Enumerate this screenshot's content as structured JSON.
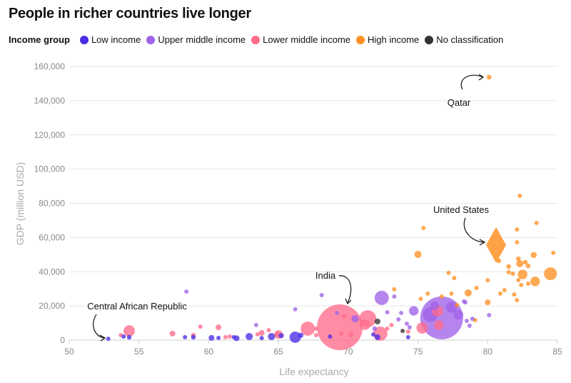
{
  "chart_data": {
    "type": "scatter",
    "title": "People in richer countries live longer",
    "xlabel": "Life expectancy",
    "ylabel": "GDP (million USD)",
    "xlim": [
      50,
      85
    ],
    "ylim": [
      0,
      160000
    ],
    "x_ticks": [
      "50",
      "55",
      "60",
      "65",
      "70",
      "75",
      "80",
      "85"
    ],
    "y_ticks": [
      "0",
      "20,000",
      "40,000",
      "60,000",
      "80,000",
      "100,000",
      "120,000",
      "140,000",
      "160,000"
    ],
    "grid": "horizontal",
    "legend": {
      "title": "Income group",
      "placement": "top-left",
      "entries": [
        {
          "label": "Low income",
          "color": "#4b2be6"
        },
        {
          "label": "Upper middle income",
          "color": "#a063e8"
        },
        {
          "label": "Lower middle income",
          "color": "#ff6b8a"
        },
        {
          "label": "High income",
          "color": "#ff9124"
        },
        {
          "label": "No classification",
          "color": "#333333"
        }
      ]
    },
    "point_fields": [
      "life_expectancy",
      "gdp",
      "relative_size",
      "income_group_index"
    ],
    "points": [
      [
        80.1,
        153700,
        1.2,
        3
      ],
      [
        82.3,
        84400,
        1,
        3
      ],
      [
        75.4,
        65600,
        1,
        3
      ],
      [
        83.5,
        68500,
        1,
        3
      ],
      [
        82.1,
        64700,
        1,
        3
      ],
      [
        82.1,
        57200,
        1,
        3
      ],
      [
        75.0,
        50100,
        2.8,
        3
      ],
      [
        84.7,
        51000,
        1,
        3
      ],
      [
        83.3,
        49700,
        2,
        3
      ],
      [
        82.2,
        47600,
        1.2,
        3
      ],
      [
        82.3,
        44700,
        2.8,
        3
      ],
      [
        82.7,
        45500,
        1.2,
        3
      ],
      [
        82.9,
        43400,
        1.2,
        3
      ],
      [
        81.5,
        43000,
        1.2,
        3
      ],
      [
        80.8,
        46400,
        1.2,
        3
      ],
      [
        81.5,
        39700,
        1,
        3
      ],
      [
        81.8,
        38800,
        1,
        3
      ],
      [
        82.5,
        38400,
        5,
        3
      ],
      [
        84.5,
        38800,
        9,
        3
      ],
      [
        82.2,
        35100,
        1,
        3
      ],
      [
        83.4,
        34300,
        5,
        3
      ],
      [
        82.9,
        33000,
        1,
        3
      ],
      [
        82.4,
        32200,
        1,
        3
      ],
      [
        77.2,
        39300,
        1,
        3
      ],
      [
        77.6,
        36300,
        1,
        3
      ],
      [
        80.0,
        35000,
        1,
        3
      ],
      [
        79.2,
        30500,
        1,
        3
      ],
      [
        81.2,
        29200,
        1,
        3
      ],
      [
        80.9,
        27200,
        1,
        3
      ],
      [
        81.9,
        26700,
        1,
        3
      ],
      [
        82.1,
        23400,
        1,
        3
      ],
      [
        80.0,
        22100,
        1.8,
        3
      ],
      [
        78.6,
        27600,
        2.8,
        3
      ],
      [
        77.4,
        27200,
        1,
        3
      ],
      [
        76.7,
        25500,
        1,
        3
      ],
      [
        75.7,
        27200,
        1,
        3
      ],
      [
        75.2,
        24200,
        1,
        3
      ],
      [
        77.8,
        20500,
        1,
        3
      ],
      [
        73.3,
        29700,
        1,
        3
      ],
      [
        79.1,
        11700,
        1,
        3
      ],
      [
        76.7,
        13000,
        100,
        1
      ],
      [
        72.4,
        24700,
        11,
        1
      ],
      [
        78.3,
        22600,
        1,
        1
      ],
      [
        68.1,
        26300,
        1,
        1
      ],
      [
        66.2,
        18000,
        1,
        1
      ],
      [
        73.3,
        25500,
        1,
        1
      ],
      [
        72.8,
        16300,
        1,
        1
      ],
      [
        73.8,
        15900,
        1,
        1
      ],
      [
        73.6,
        12100,
        1,
        1
      ],
      [
        74.2,
        9600,
        1,
        1
      ],
      [
        74.4,
        7500,
        1,
        1
      ],
      [
        74.7,
        17100,
        5,
        1
      ],
      [
        77.4,
        19200,
        7,
        1
      ],
      [
        78.4,
        22100,
        1,
        1
      ],
      [
        78.5,
        11300,
        1,
        1
      ],
      [
        78.9,
        12500,
        1,
        1
      ],
      [
        78.7,
        8400,
        1,
        1
      ],
      [
        80.1,
        14600,
        1,
        1
      ],
      [
        71.9,
        6700,
        1.2,
        1
      ],
      [
        69.2,
        15900,
        1,
        1
      ],
      [
        58.4,
        28400,
        1,
        1
      ],
      [
        63.4,
        8800,
        1,
        1
      ],
      [
        70.5,
        12500,
        3,
        1
      ],
      [
        75.9,
        15000,
        12,
        1
      ],
      [
        76.2,
        20000,
        4,
        1
      ],
      [
        77.9,
        14800,
        5,
        1
      ],
      [
        69.4,
        7500,
        114,
        2
      ],
      [
        71.4,
        12500,
        16,
        2
      ],
      [
        72.3,
        3800,
        11,
        2
      ],
      [
        67.1,
        6700,
        11,
        2
      ],
      [
        65.0,
        3300,
        4,
        2
      ],
      [
        75.3,
        7100,
        7,
        2
      ],
      [
        74.3,
        5000,
        1,
        2
      ],
      [
        73.1,
        8800,
        1,
        2
      ],
      [
        72.8,
        6700,
        1,
        2
      ],
      [
        76.4,
        17100,
        7,
        2
      ],
      [
        76.5,
        8800,
        5,
        2
      ],
      [
        69.5,
        3800,
        1,
        2
      ],
      [
        70.2,
        3300,
        1.5,
        2
      ],
      [
        67.7,
        2900,
        1,
        2
      ],
      [
        67.7,
        6700,
        1,
        2
      ],
      [
        69.7,
        14000,
        1,
        2
      ],
      [
        71.2,
        9000,
        6,
        2
      ],
      [
        54.3,
        5400,
        7,
        2
      ],
      [
        53.7,
        2900,
        1,
        2
      ],
      [
        57.4,
        3800,
        1.8,
        2
      ],
      [
        58.9,
        2900,
        1.2,
        2
      ],
      [
        59.4,
        7900,
        1,
        2
      ],
      [
        60.7,
        7500,
        1.8,
        2
      ],
      [
        61.2,
        1700,
        1,
        2
      ],
      [
        61.5,
        2100,
        1,
        2
      ],
      [
        63.5,
        3400,
        1,
        2
      ],
      [
        63.8,
        4200,
        1.8,
        2
      ],
      [
        64.3,
        5800,
        1,
        2
      ],
      [
        64.9,
        3500,
        1,
        2
      ],
      [
        52.8,
        800,
        1,
        0
      ],
      [
        53.9,
        2100,
        1,
        0
      ],
      [
        54.3,
        1700,
        1.2,
        0
      ],
      [
        58.3,
        1700,
        1,
        0
      ],
      [
        58.9,
        1700,
        1.2,
        0
      ],
      [
        60.2,
        1300,
        1.8,
        0
      ],
      [
        60.7,
        1300,
        1,
        0
      ],
      [
        61.8,
        1700,
        1,
        0
      ],
      [
        62.0,
        1100,
        1.8,
        0
      ],
      [
        62.9,
        2100,
        2.8,
        0
      ],
      [
        64.5,
        2100,
        2.8,
        0
      ],
      [
        63.8,
        1200,
        1,
        0
      ],
      [
        66.2,
        1700,
        7,
        0
      ],
      [
        68.7,
        2100,
        1,
        0
      ],
      [
        72.1,
        1700,
        1.8,
        0
      ],
      [
        71.8,
        3300,
        1,
        0
      ],
      [
        74.3,
        1700,
        1,
        0
      ],
      [
        65.2,
        2600,
        1.5,
        0
      ],
      [
        66.6,
        2800,
        1.5,
        0
      ],
      [
        72.1,
        10900,
        1.8,
        4
      ],
      [
        73.9,
        5400,
        1,
        4
      ]
    ],
    "highlight": {
      "label": "United States",
      "life_expectancy": 80.6,
      "gdp": 55600,
      "shape": "diamond",
      "income_group_index": 3
    },
    "annotations": [
      {
        "label": "Qatar",
        "life_expectancy": 80.1,
        "gdp": 153700
      },
      {
        "label": "United States",
        "life_expectancy": 80.6,
        "gdp": 55600
      },
      {
        "label": "India",
        "life_expectancy": 69.4,
        "gdp": 7500
      },
      {
        "label": "Central African Republic",
        "life_expectancy": 52.8,
        "gdp": 800
      }
    ]
  }
}
